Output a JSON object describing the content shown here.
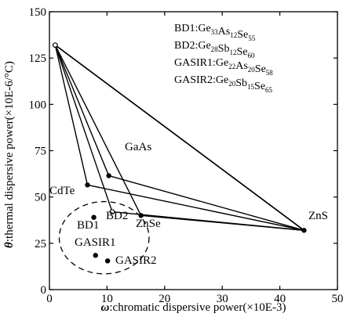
{
  "chart_data": {
    "type": "scatter",
    "xlabel_symbol": "ω",
    "xlabel_text": ":chromatic dispersive power(×10E-3)",
    "ylabel_symbol": "θ",
    "ylabel_text": ":thermal dispersive power(×10E-6/°C)",
    "xlim": [
      0,
      50
    ],
    "ylim": [
      0,
      150
    ],
    "xticks": [
      0,
      10,
      20,
      30,
      40,
      50
    ],
    "yticks": [
      0,
      25,
      50,
      75,
      100,
      125,
      150
    ],
    "legend_position": "top-right",
    "legend": [
      {
        "label": "BD1",
        "formula": [
          [
            "Ge",
            "33"
          ],
          [
            "As",
            "12"
          ],
          [
            "Se",
            "55"
          ]
        ]
      },
      {
        "label": "BD2",
        "formula": [
          [
            "Ge",
            "28"
          ],
          [
            "Sb",
            "12"
          ],
          [
            "Se",
            "60"
          ]
        ]
      },
      {
        "label": "GASIR1",
        "formula": [
          [
            "Ge",
            "22"
          ],
          [
            "As",
            "20"
          ],
          [
            "Se",
            "58"
          ]
        ]
      },
      {
        "label": "GASIR2",
        "formula": [
          [
            "Ge",
            "20"
          ],
          [
            "Sb",
            "15"
          ],
          [
            "Se",
            "65"
          ]
        ]
      }
    ],
    "points": [
      {
        "name": "apex",
        "x": 1.0,
        "y": 132.0,
        "marker": "open",
        "label": ""
      },
      {
        "name": "GaAs",
        "x": 10.3,
        "y": 61.5,
        "marker": "filled",
        "label": "GaAs"
      },
      {
        "name": "CdTe",
        "x": 6.6,
        "y": 56.5,
        "marker": "filled",
        "label": "CdTe"
      },
      {
        "name": "BD2",
        "x": 10.9,
        "y": 42.0,
        "marker": "open",
        "label": "BD2"
      },
      {
        "name": "ZnSe",
        "x": 15.9,
        "y": 40.0,
        "marker": "filled",
        "label": "ZnSe"
      },
      {
        "name": "BD1",
        "x": 7.7,
        "y": 39.0,
        "marker": "filled",
        "label": "BD1"
      },
      {
        "name": "GASIR1",
        "x": 8.0,
        "y": 18.5,
        "marker": "filled",
        "label": "GASIR1"
      },
      {
        "name": "GASIR2",
        "x": 10.1,
        "y": 15.5,
        "marker": "filled",
        "label": "GASIR2"
      },
      {
        "name": "ZnS",
        "x": 44.2,
        "y": 32.0,
        "marker": "filled",
        "label": "ZnS"
      }
    ],
    "triangles": [
      [
        "apex",
        "GaAs",
        "ZnS"
      ],
      [
        "apex",
        "CdTe",
        "ZnS"
      ],
      [
        "apex",
        "BD2",
        "ZnS"
      ],
      [
        "apex",
        "ZnSe",
        "ZnS"
      ]
    ],
    "ellipse": {
      "cx": 9.5,
      "cy": 28.0,
      "rx": 7.8,
      "ry": 19.5,
      "style": "dashed"
    }
  }
}
